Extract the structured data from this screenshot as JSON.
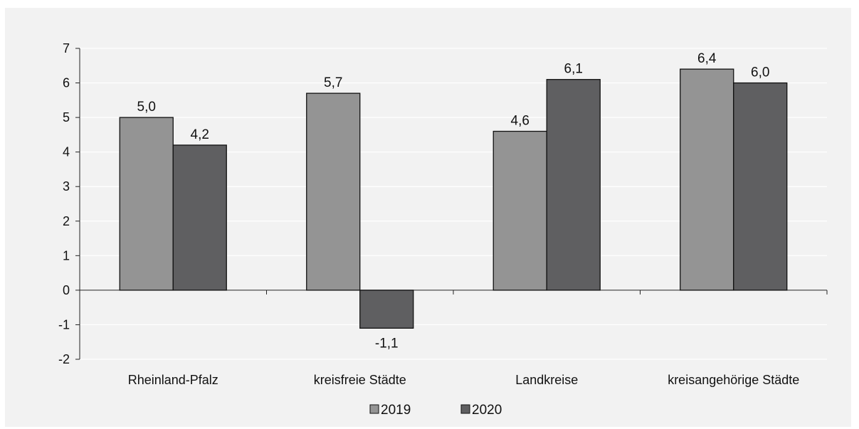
{
  "chart_data": {
    "type": "bar",
    "categories": [
      "Rheinland-Pfalz",
      "kreisfreie Städte",
      "Landkreise",
      "kreisangehörige Städte"
    ],
    "series": [
      {
        "name": "2019",
        "values": [
          5.0,
          5.7,
          4.6,
          6.4
        ],
        "labels": [
          "5,0",
          "5,7",
          "4,6",
          "6,4"
        ],
        "color": "#949494"
      },
      {
        "name": "2020",
        "values": [
          4.2,
          -1.1,
          6.1,
          6.0
        ],
        "labels": [
          "4,2",
          "-1,1",
          "6,1",
          "6,0"
        ],
        "color": "#5f5f61"
      }
    ],
    "yticks": [
      7,
      6,
      5,
      4,
      3,
      2,
      1,
      0,
      -1,
      -2
    ],
    "ylim": [
      -2,
      7
    ],
    "grid": true,
    "legend": "bottom-center",
    "title": "",
    "xlabel": "",
    "ylabel": ""
  }
}
